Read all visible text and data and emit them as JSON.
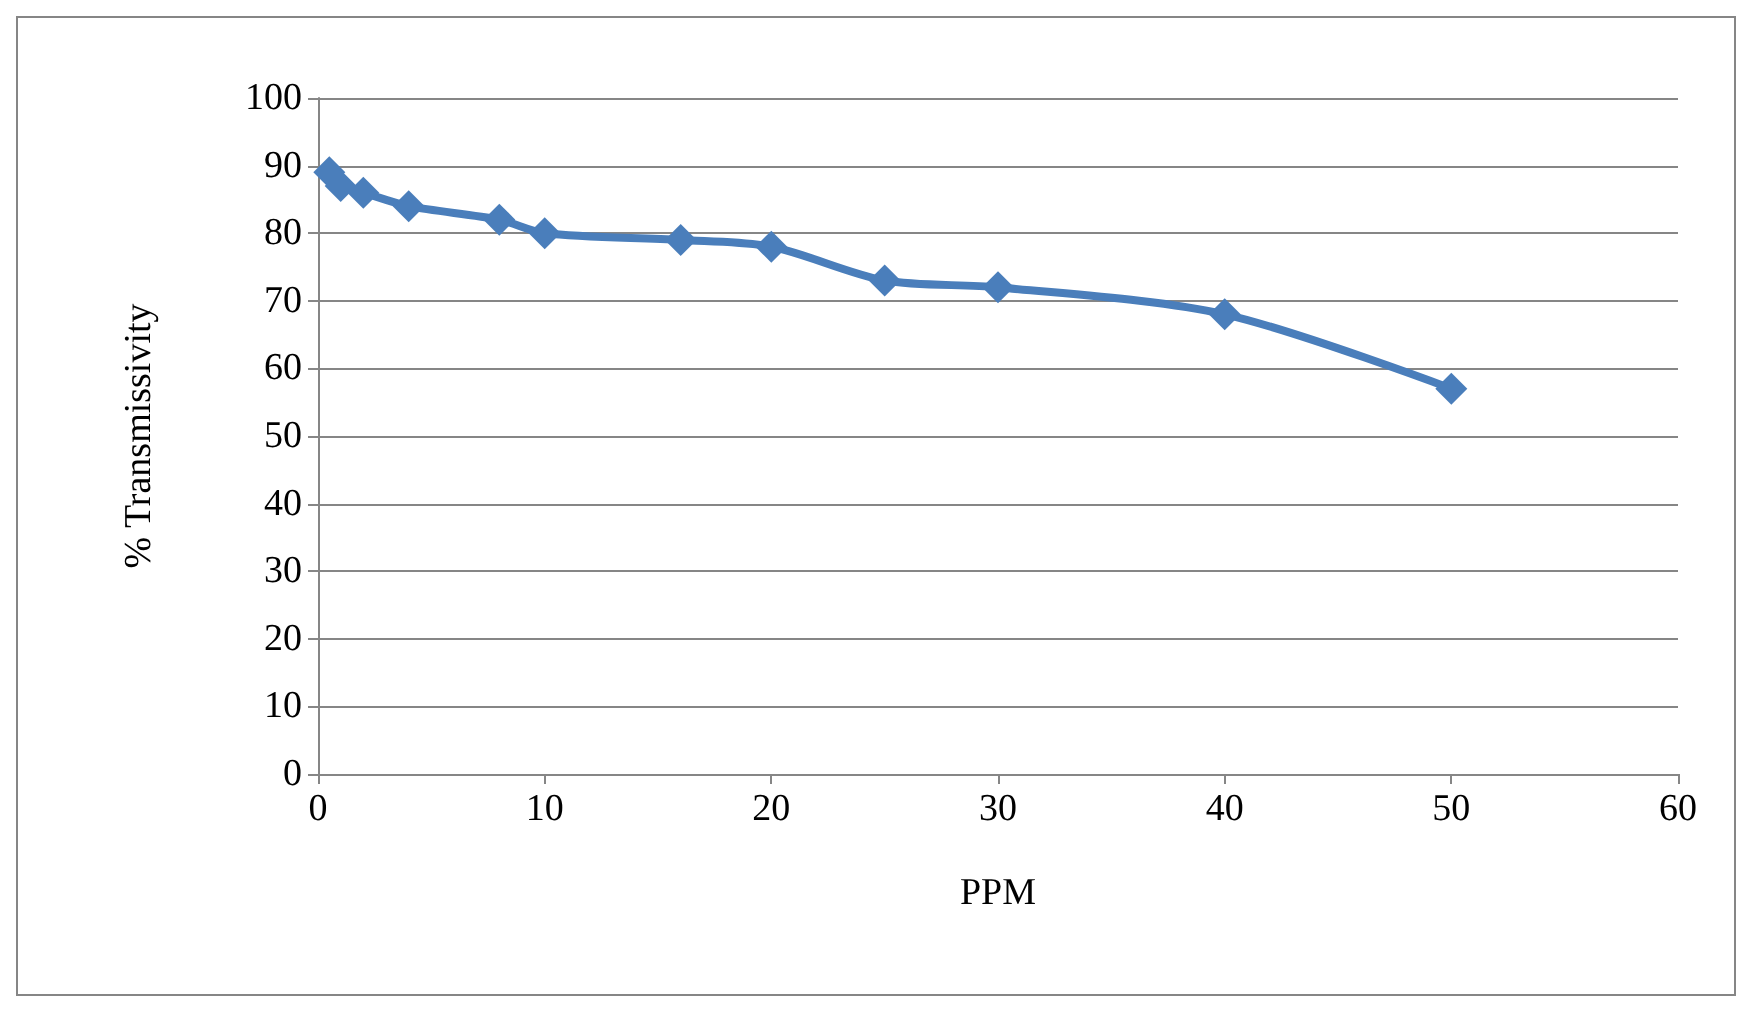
{
  "chart_data": {
    "type": "line",
    "xlabel": "PPM",
    "ylabel": "% Transmissivity",
    "x": [
      0.5,
      1,
      2,
      4,
      8,
      10,
      16,
      20,
      25,
      30,
      40,
      50
    ],
    "series": [
      {
        "color": "#4a7ebb",
        "values": [
          89,
          87,
          86,
          84,
          82,
          80,
          79,
          78,
          73,
          72,
          68,
          57
        ]
      }
    ],
    "xlim": [
      0,
      60
    ],
    "xticks": [
      0,
      10,
      20,
      30,
      40,
      50,
      60
    ],
    "ylim": [
      0,
      100
    ],
    "yticks": [
      0,
      10,
      20,
      30,
      40,
      50,
      60,
      70,
      80,
      90,
      100
    ],
    "grid": "y",
    "marker": "diamond",
    "line_style": "solid"
  }
}
